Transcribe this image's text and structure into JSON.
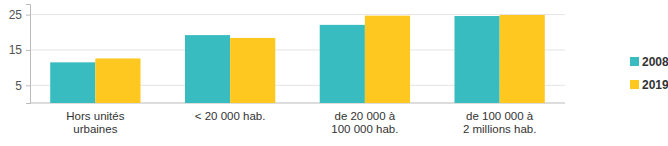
{
  "chart_data": {
    "type": "bar",
    "categories": [
      "Hors unités\nurbaines",
      "< 20 000 hab.",
      "de 20 000 à\n100 000 hab.",
      "de 100 000 à\n2 millions hab."
    ],
    "series": [
      {
        "name": "2008",
        "color": "#38bcc0",
        "values": [
          11.5,
          19.2,
          22.1,
          24.6
        ]
      },
      {
        "name": "2019",
        "color": "#ffc820",
        "values": [
          12.6,
          18.4,
          24.7,
          24.9
        ]
      }
    ],
    "ylim": [
      0,
      28
    ],
    "yticks": [
      5,
      15,
      25
    ],
    "grid": true,
    "legend": "right"
  }
}
